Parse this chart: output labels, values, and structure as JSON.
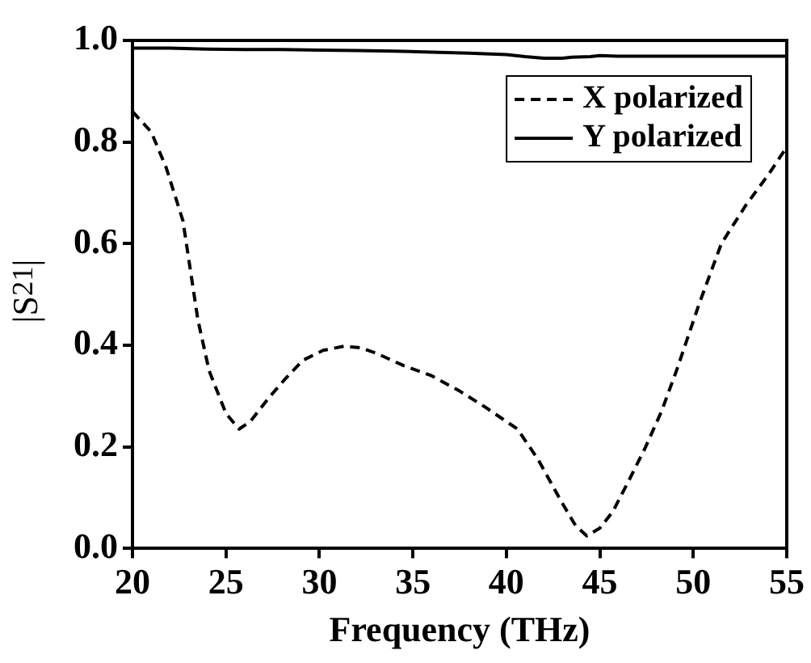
{
  "chart_data": {
    "type": "line",
    "xlabel": "Frequency (THz)",
    "ylabel": "|S$_{21}$|",
    "xlim": [
      20,
      55
    ],
    "xticks": [
      20,
      25,
      30,
      35,
      40,
      45,
      50,
      55
    ],
    "ylim": [
      0,
      1
    ],
    "yticks": [
      {
        "value": 0,
        "label": "0.0"
      },
      {
        "value": 0.2,
        "label": "0.2"
      },
      {
        "value": 0.4,
        "label": "0.4"
      },
      {
        "value": 0.6,
        "label": "0.6"
      },
      {
        "value": 0.8,
        "label": "0.8"
      },
      {
        "value": 1,
        "label": "1.0"
      }
    ],
    "grid": false,
    "legend": "top right",
    "marker": "none",
    "series": [
      {
        "name": "X polarized",
        "color": "#000000",
        "line_style": "dashed",
        "x": [
          20,
          21,
          21.8,
          22.7,
          23.5,
          24.1,
          25,
          25.7,
          26.3,
          27.3,
          28.2,
          29.1,
          30.2,
          31.3,
          32.2,
          33,
          34.5,
          36,
          37.5,
          38.8,
          40.6,
          41.7,
          42.9,
          43.7,
          44.3,
          45,
          45.7,
          46.5,
          47.4,
          48.3,
          49.1,
          50.3,
          51.5,
          52.8,
          54,
          55
        ],
        "values": [
          0.86,
          0.82,
          0.75,
          0.645,
          0.45,
          0.35,
          0.266,
          0.235,
          0.25,
          0.297,
          0.335,
          0.37,
          0.39,
          0.398,
          0.395,
          0.385,
          0.36,
          0.34,
          0.31,
          0.28,
          0.235,
          0.175,
          0.095,
          0.045,
          0.025,
          0.04,
          0.073,
          0.13,
          0.196,
          0.27,
          0.35,
          0.48,
          0.6,
          0.675,
          0.735,
          0.79
        ]
      },
      {
        "name": "Y polarized",
        "color": "#000000",
        "line_style": "solid",
        "x": [
          20,
          22,
          24,
          26,
          28,
          30,
          32,
          34,
          36,
          38,
          40,
          41,
          42,
          43,
          43.5,
          44.5,
          45,
          46,
          48,
          50,
          52,
          55
        ],
        "values": [
          0.985,
          0.985,
          0.983,
          0.982,
          0.982,
          0.981,
          0.98,
          0.979,
          0.977,
          0.975,
          0.972,
          0.968,
          0.965,
          0.965,
          0.967,
          0.968,
          0.97,
          0.969,
          0.969,
          0.969,
          0.969,
          0.969
        ]
      }
    ]
  }
}
